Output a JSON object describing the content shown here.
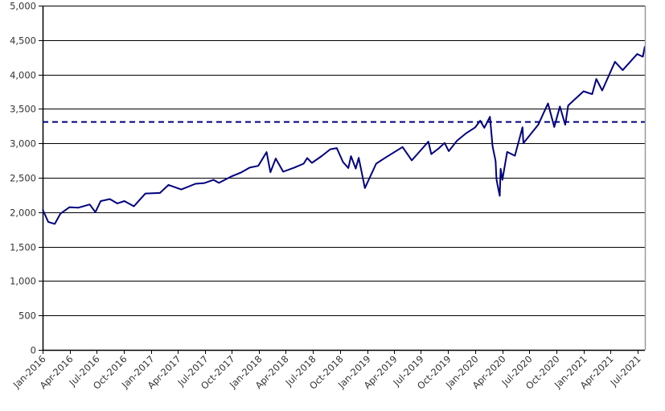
{
  "chart_data": {
    "type": "line",
    "title": "",
    "xlabel": "",
    "ylabel": "",
    "ylim": [
      0,
      5000
    ],
    "yticks": [
      0,
      500,
      1000,
      1500,
      2000,
      2500,
      3000,
      3500,
      4000,
      4500,
      5000
    ],
    "ytick_labels": [
      "0",
      "500",
      "1,000",
      "1,500",
      "2,000",
      "2,500",
      "3,000",
      "3,500",
      "4,000",
      "4,500",
      "5,000"
    ],
    "xlim": [
      "2016-01-01",
      "2021-07-26"
    ],
    "xticks": [
      "2016-01-01",
      "2016-04-01",
      "2016-07-01",
      "2016-10-01",
      "2017-01-01",
      "2017-04-01",
      "2017-07-01",
      "2017-10-01",
      "2018-01-01",
      "2018-04-01",
      "2018-07-01",
      "2018-10-01",
      "2019-01-01",
      "2019-04-01",
      "2019-07-01",
      "2019-10-01",
      "2020-01-01",
      "2020-04-01",
      "2020-07-01",
      "2020-10-01",
      "2021-01-01",
      "2021-04-01",
      "2021-07-01"
    ],
    "xtick_labels": [
      "Jan-2016",
      "Apr-2016",
      "Jul-2016",
      "Oct-2016",
      "Jan-2017",
      "Apr-2017",
      "Jul-2017",
      "Oct-2017",
      "Jan-2018",
      "Apr-2018",
      "Jul-2018",
      "Oct-2018",
      "Jan-2019",
      "Apr-2019",
      "Jul-2019",
      "Oct-2019",
      "Jan-2020",
      "Apr-2020",
      "Jul-2020",
      "Oct-2020",
      "Jan-2021",
      "Apr-2021",
      "Jul-2021"
    ],
    "grid": "horizontal",
    "line_color": "#000080",
    "reference_line": {
      "value": 3310,
      "style": "dashed",
      "color": "#000080"
    },
    "series": [
      {
        "x": [
          "2016-01-01",
          "2016-01-20",
          "2016-02-11",
          "2016-03-01",
          "2016-04-01",
          "2016-05-01",
          "2016-06-08",
          "2016-06-27",
          "2016-07-15",
          "2016-08-15",
          "2016-09-09",
          "2016-10-03",
          "2016-11-04",
          "2016-12-13",
          "2017-01-31",
          "2017-03-01",
          "2017-04-13",
          "2017-05-31",
          "2017-06-30",
          "2017-07-31",
          "2017-08-18",
          "2017-09-29",
          "2017-10-31",
          "2017-11-30",
          "2017-12-29",
          "2018-01-26",
          "2018-02-08",
          "2018-02-26",
          "2018-03-23",
          "2018-04-30",
          "2018-05-31",
          "2018-06-12",
          "2018-06-28",
          "2018-07-31",
          "2018-08-29",
          "2018-09-20",
          "2018-10-11",
          "2018-10-29",
          "2018-11-07",
          "2018-11-23",
          "2018-12-03",
          "2018-12-24",
          "2019-01-31",
          "2019-02-28",
          "2019-04-30",
          "2019-05-31",
          "2019-07-26",
          "2019-08-05",
          "2019-08-30",
          "2019-09-19",
          "2019-10-03",
          "2019-10-31",
          "2019-11-29",
          "2019-12-31",
          "2020-01-17",
          "2020-01-31",
          "2020-02-19",
          "2020-02-28",
          "2020-03-09",
          "2020-03-12",
          "2020-03-16",
          "2020-03-23",
          "2020-03-26",
          "2020-04-01",
          "2020-04-17",
          "2020-05-13",
          "2020-06-08",
          "2020-06-11",
          "2020-07-31",
          "2020-09-02",
          "2020-09-23",
          "2020-10-12",
          "2020-10-30",
          "2020-11-09",
          "2020-12-31",
          "2021-01-29",
          "2021-02-12",
          "2021-03-04",
          "2021-04-16",
          "2021-05-12",
          "2021-06-30",
          "2021-07-19",
          "2021-07-26"
        ],
        "values": [
          2040,
          1859,
          1829,
          1978,
          2072,
          2065,
          2112,
          2000,
          2161,
          2190,
          2127,
          2161,
          2085,
          2271,
          2279,
          2396,
          2329,
          2412,
          2423,
          2470,
          2425,
          2519,
          2575,
          2647,
          2673,
          2873,
          2581,
          2779,
          2588,
          2648,
          2705,
          2786,
          2716,
          2816,
          2914,
          2931,
          2728,
          2641,
          2814,
          2633,
          2790,
          2351,
          2704,
          2784,
          2946,
          2752,
          3025,
          2844,
          2926,
          3006,
          2887,
          3038,
          3141,
          3231,
          3330,
          3226,
          3386,
          2954,
          2747,
          2481,
          2386,
          2237,
          2630,
          2470,
          2875,
          2820,
          3232,
          3002,
          3271,
          3580,
          3237,
          3535,
          3270,
          3550,
          3756,
          3714,
          3934,
          3768,
          4185,
          4063,
          4297,
          4258,
          4410
        ]
      }
    ]
  }
}
